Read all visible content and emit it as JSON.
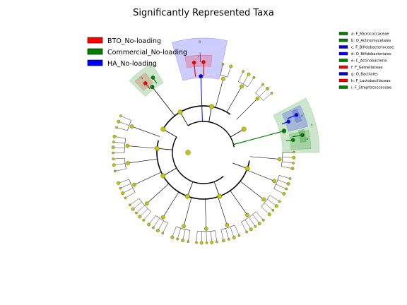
{
  "chart_data": {
    "type": "cladogram",
    "title": "Significantly Represented Taxa",
    "groups": [
      {
        "name": "BTO_No-loading",
        "color": "#ff0000"
      },
      {
        "name": "Commercial_No-loading",
        "color": "#008000"
      },
      {
        "name": "HA_No-loading",
        "color": "#0000ff"
      }
    ],
    "biomarkers": [
      {
        "letter": "a",
        "label": "a: F_Micrococcaceae",
        "group": "Commercial_No-loading"
      },
      {
        "letter": "b",
        "label": "b: O_Actinomycetales",
        "group": "Commercial_No-loading"
      },
      {
        "letter": "c",
        "label": "c: F_Bifidobacteriaceae",
        "group": "HA_No-loading"
      },
      {
        "letter": "d",
        "label": "d: O_Bifidobacteriales",
        "group": "HA_No-loading"
      },
      {
        "letter": "e",
        "label": "e: C_Actinobacteria",
        "group": "Commercial_No-loading"
      },
      {
        "letter": "f",
        "label": "f: F_Gemellaceae",
        "group": "BTO_No-loading"
      },
      {
        "letter": "g",
        "label": "g: O_Bacillales",
        "group": "HA_No-loading"
      },
      {
        "letter": "h",
        "label": "h: F_Lactobacillaceae",
        "group": "BTO_No-loading"
      },
      {
        "letter": "i",
        "label": "i: F_Streptococcaceae",
        "group": "Commercial_No-loading"
      }
    ]
  }
}
